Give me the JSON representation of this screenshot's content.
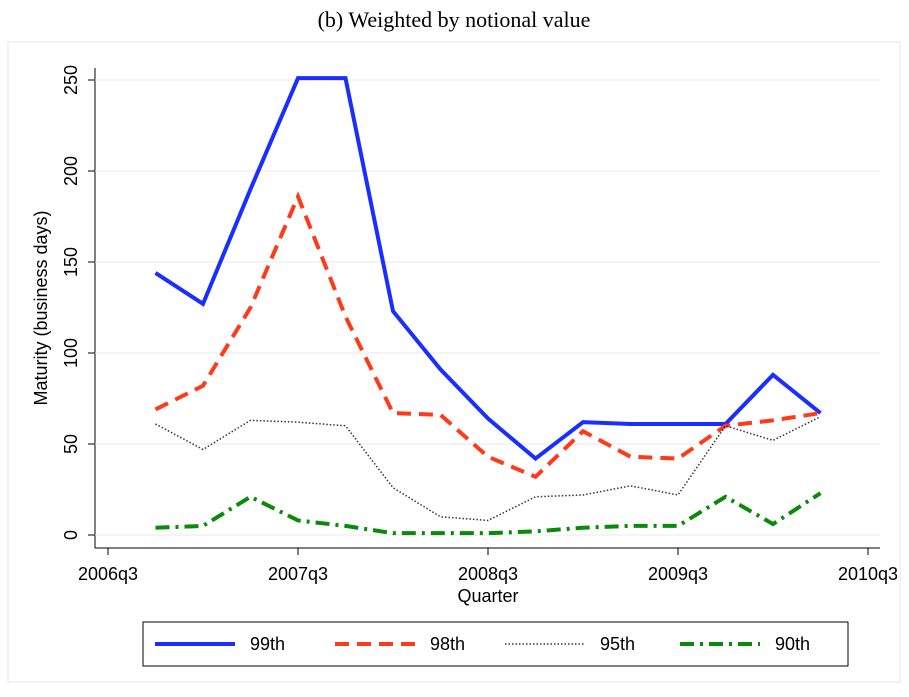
{
  "chart_data": {
    "type": "line",
    "title": "(b) Weighted by notional value",
    "x_label": "Quarter",
    "y_label": "Maturity (business days)",
    "x": [
      "2006q4",
      "2007q1",
      "2007q2",
      "2007q3",
      "2007q4",
      "2008q1",
      "2008q2",
      "2008q3",
      "2008q4",
      "2009q1",
      "2009q2",
      "2009q3",
      "2009q4",
      "2010q1",
      "2010q2"
    ],
    "xlim": [
      "2006q3",
      "2010q3"
    ],
    "xticks": [
      "2006q3",
      "2007q3",
      "2008q3",
      "2009q3",
      "2010q3"
    ],
    "ylim": [
      0,
      250
    ],
    "yticks": [
      0,
      50,
      100,
      150,
      200,
      250
    ],
    "grid": true,
    "legend": "bottom",
    "series": [
      {
        "name": "99th",
        "color": "#1a2fff",
        "style": "solid",
        "values": [
          144,
          127,
          190,
          251,
          251,
          123,
          91,
          64,
          42,
          62,
          61,
          61,
          61,
          88,
          67
        ]
      },
      {
        "name": "98th",
        "color": "#ff3a1a",
        "style": "dash",
        "values": [
          69,
          82,
          125,
          186,
          120,
          67,
          66,
          43,
          32,
          57,
          43,
          42,
          60,
          63,
          67
        ]
      },
      {
        "name": "95th",
        "color": "#333333",
        "style": "dot",
        "values": [
          61,
          47,
          63,
          62,
          60,
          26,
          10,
          8,
          21,
          22,
          27,
          22,
          60,
          52,
          65
        ]
      },
      {
        "name": "90th",
        "color": "#0a8a0a",
        "style": "dashdot",
        "values": [
          4,
          5,
          21,
          8,
          5,
          1,
          1,
          1,
          2,
          4,
          5,
          5,
          21,
          6,
          23
        ]
      }
    ]
  }
}
